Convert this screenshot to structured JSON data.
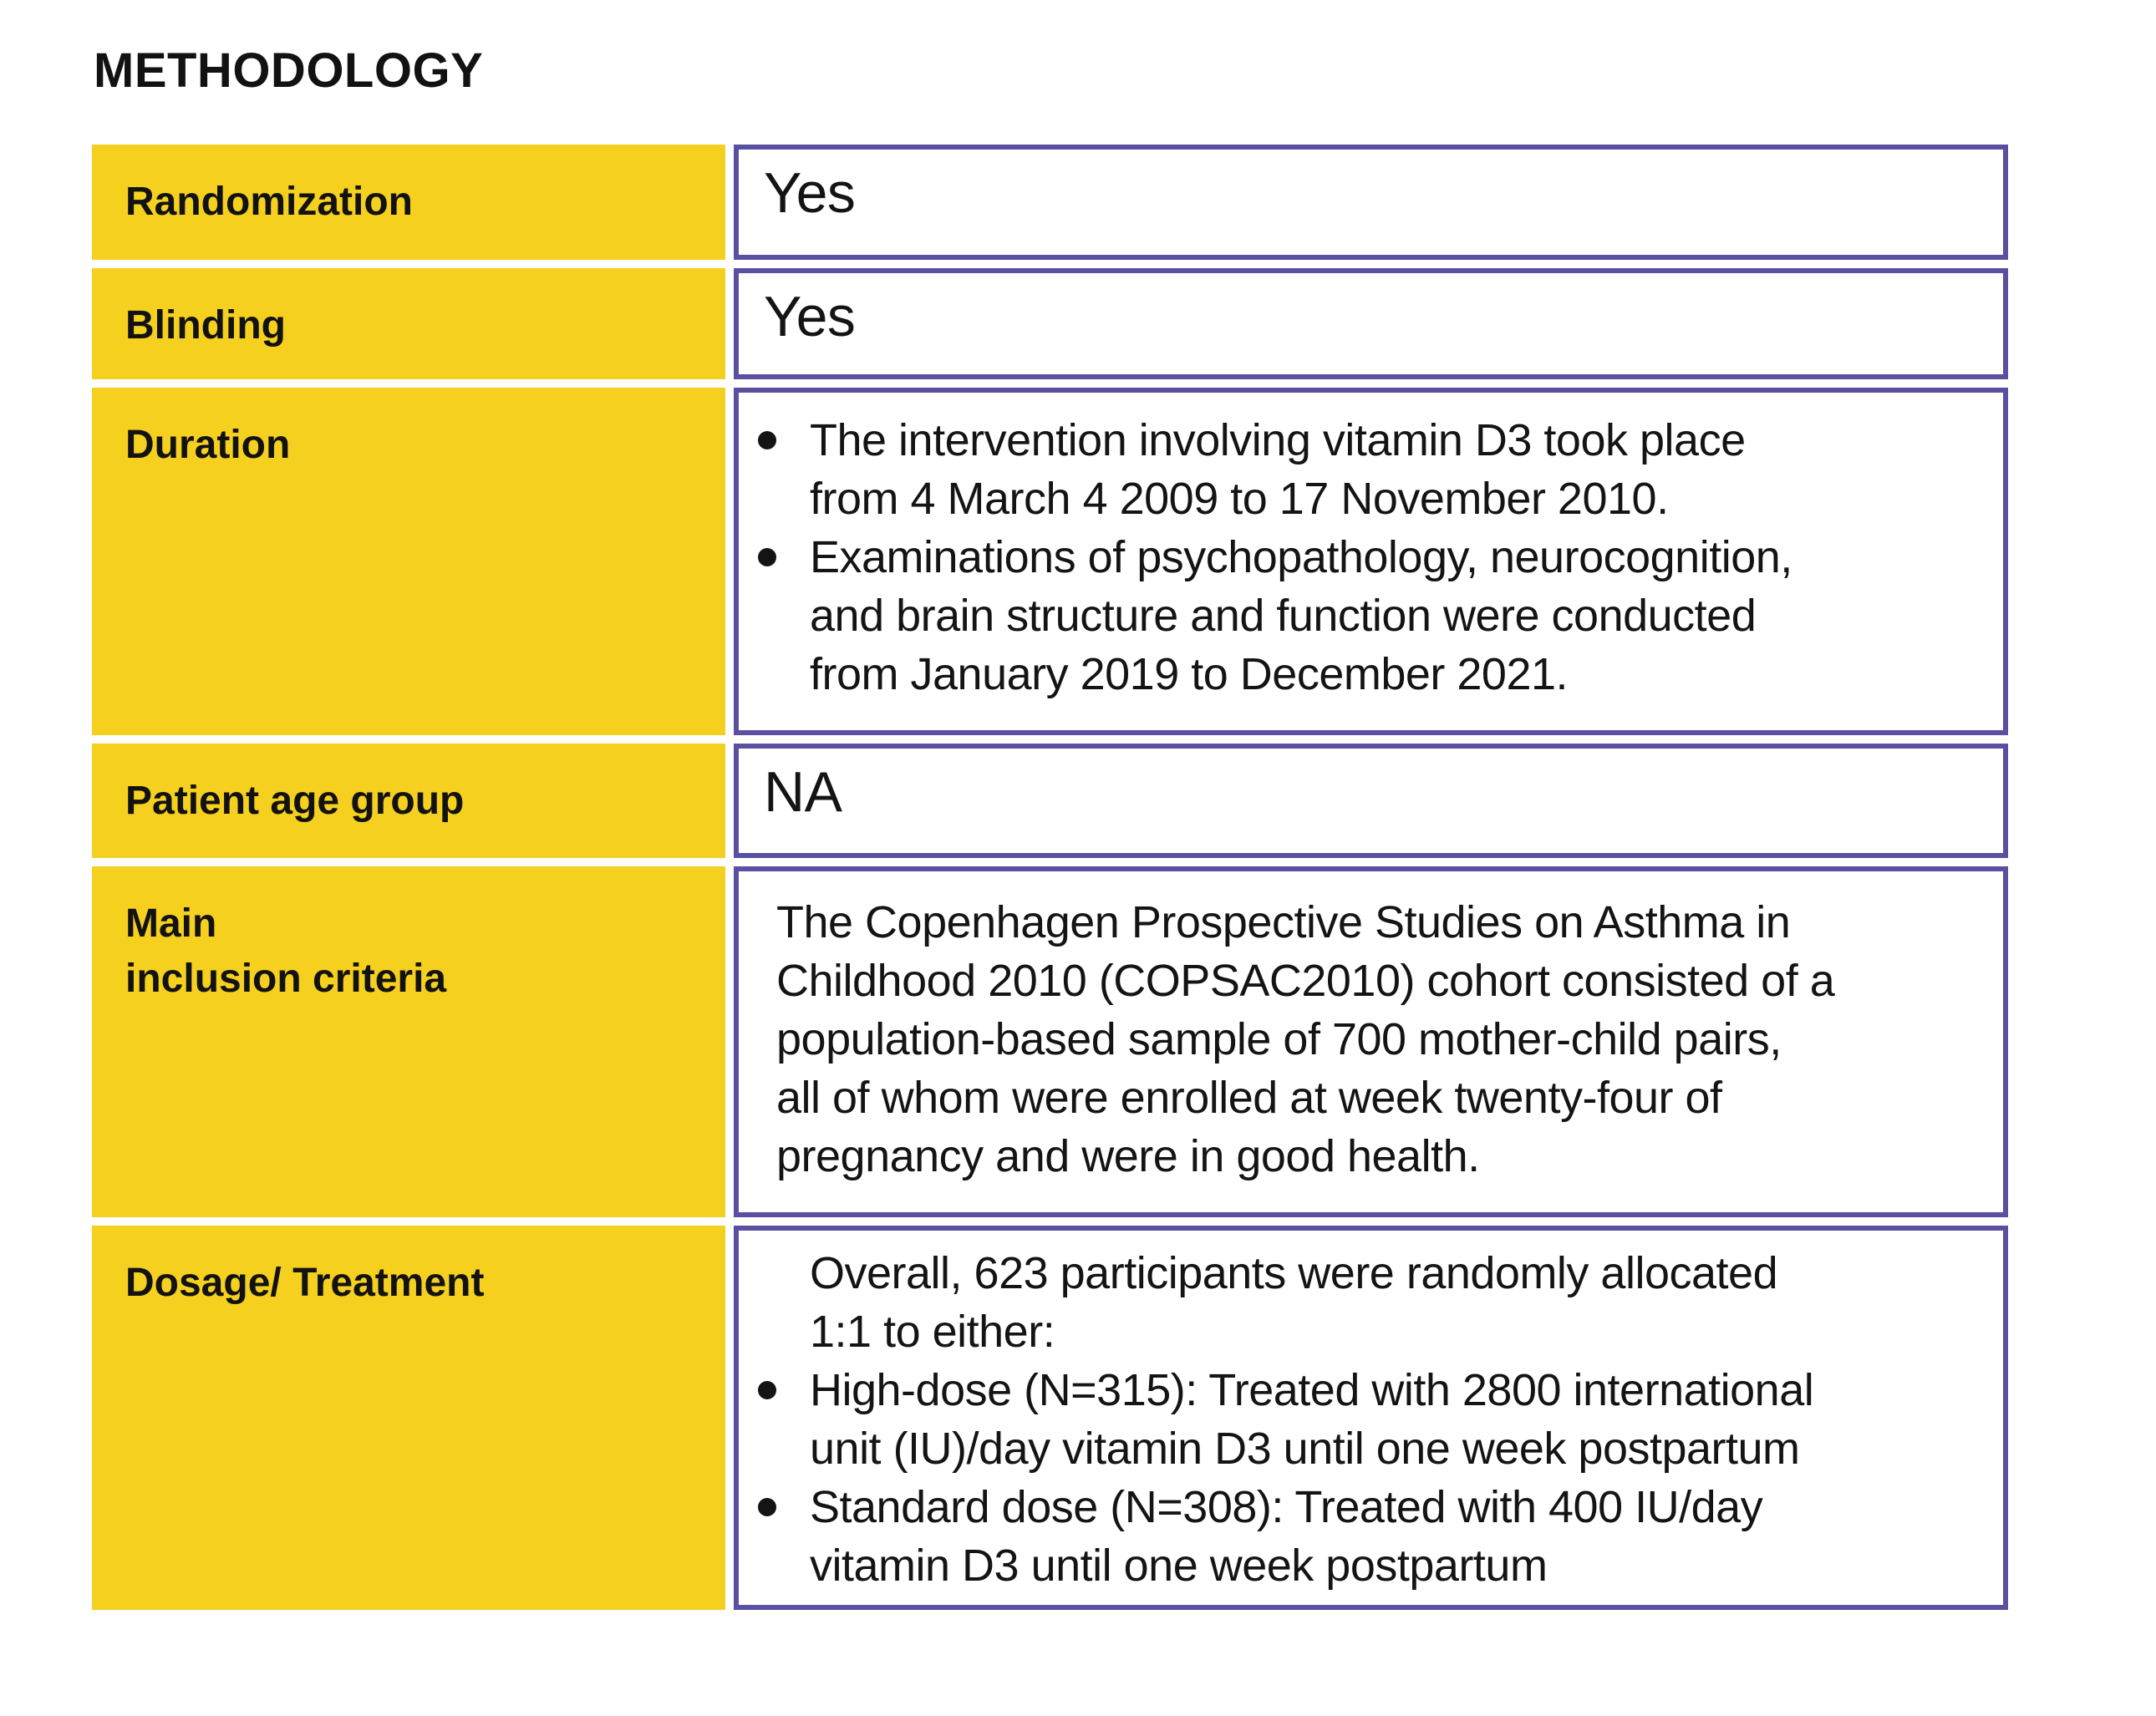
{
  "page": {
    "title": "METHODOLOGY",
    "colors": {
      "label_background": "#F5D01F",
      "value_border": "#5A50A2",
      "text": "#141414"
    }
  },
  "table": {
    "rows": [
      {
        "id": "randomization",
        "label": "Randomization",
        "value": "Yes"
      },
      {
        "id": "blinding",
        "label": "Blinding",
        "value": "Yes"
      },
      {
        "id": "duration",
        "label": "Duration",
        "bullets": [
          "The intervention involving vitamin D3 took place\nfrom 4 March 4 2009 to 17 November 2010.",
          "Examinations of psychopathology, neurocognition,\nand brain structure and function were conducted\nfrom January 2019 to December 2021."
        ]
      },
      {
        "id": "patient-age-group",
        "label": "Patient age group",
        "value": "NA"
      },
      {
        "id": "main-inclusion-criteria",
        "label": "Main\ninclusion criteria",
        "paragraph": "The Copenhagen Prospective Studies on Asthma in\nChildhood 2010 (COPSAC2010) cohort consisted of a\npopulation-based sample of 700 mother-child pairs,\nall of whom were enrolled at week twenty-four of\npregnancy and were in good health."
      },
      {
        "id": "dosage-treatment",
        "label": "Dosage/ Treatment",
        "intro": "Overall, 623 participants were randomly allocated\n1:1 to either:",
        "bullets": [
          "High-dose (N=315): Treated with 2800 international\nunit (IU)/day vitamin D3 until one week postpartum",
          "Standard dose (N=308): Treated with 400 IU/day\nvitamin D3 until one week postpartum"
        ]
      }
    ]
  }
}
